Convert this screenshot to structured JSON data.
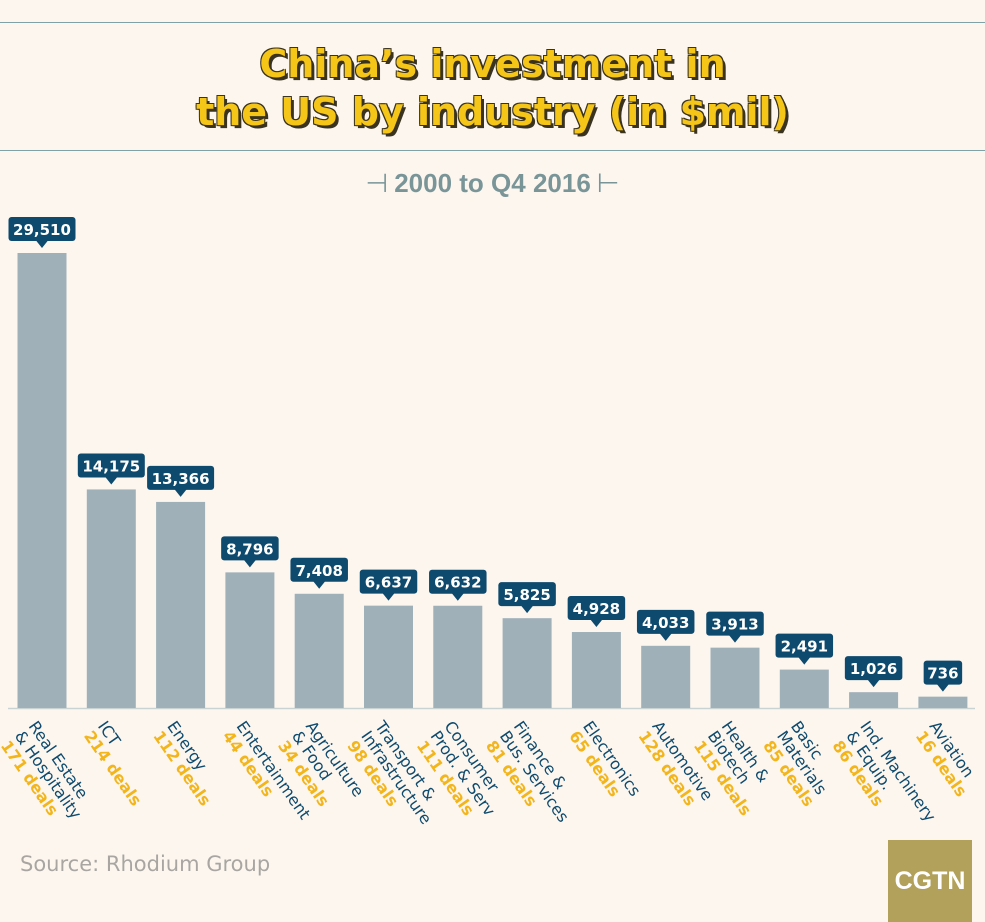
{
  "chart_data": {
    "type": "bar",
    "title_lines": [
      "China’s investment in",
      "the US by industry (in $mil)"
    ],
    "subtitle": "2000 to Q4 2016",
    "categories": [
      [
        "Real Estate",
        "& Hospitality"
      ],
      [
        "ICT"
      ],
      [
        "Energy"
      ],
      [
        "Entertainment"
      ],
      [
        "Agriculture",
        "& Food"
      ],
      [
        "Transport &",
        "Infrastructure"
      ],
      [
        "Consumer",
        "Prod. & Serv"
      ],
      [
        "Finance &",
        "Bus. Services"
      ],
      [
        "Electronics"
      ],
      [
        "Automotive"
      ],
      [
        "Health &",
        "Biotech"
      ],
      [
        "Basic",
        "Materials"
      ],
      [
        "Ind. Machinery",
        "& Equip."
      ],
      [
        "Aviation"
      ]
    ],
    "values": [
      29510,
      14175,
      13366,
      8796,
      7408,
      6637,
      6632,
      5825,
      4928,
      4033,
      3913,
      2491,
      1026,
      736
    ],
    "value_labels": [
      "29,510",
      "14,175",
      "13,366",
      "8,796",
      "7,408",
      "6,637",
      "6,632",
      "5,825",
      "4,928",
      "4,033",
      "3,913",
      "2,491",
      "1,026",
      "736"
    ],
    "deals": [
      "171 deals",
      "214 deals",
      "112 deals",
      "44 deals",
      "34 deals",
      "98 deals",
      "111 deals",
      "81 deals",
      "65 deals",
      "128 deals",
      "115 deals",
      "85 deals",
      "86 deals",
      "16 deals"
    ],
    "ylim": [
      0,
      29510
    ],
    "grid": false,
    "colors": {
      "bar": "#9fb0b8",
      "callout": "#0e4a6d",
      "deals": "#f3b51c",
      "category": "#0e4a6d"
    }
  },
  "source": "Source: Rhodium Group",
  "logo": "CGTN"
}
